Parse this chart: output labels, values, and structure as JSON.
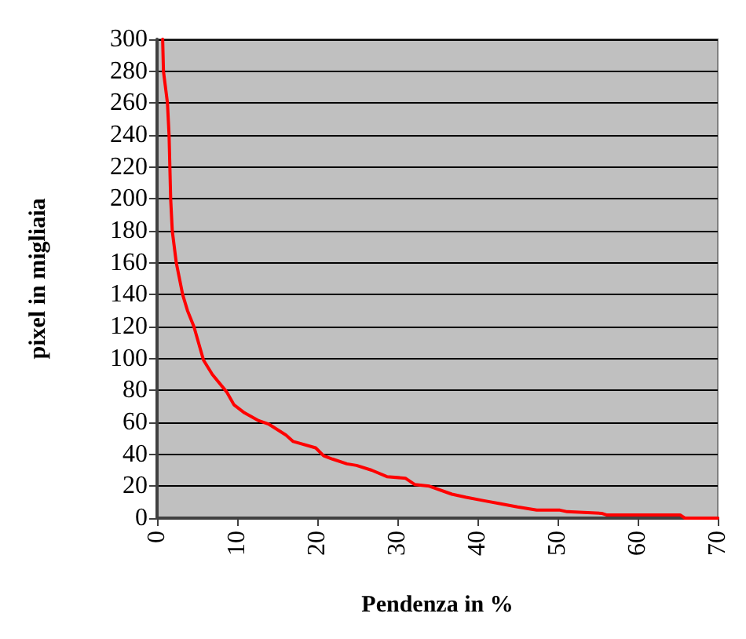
{
  "chart_data": {
    "type": "line",
    "xlabel": "Pendenza in %",
    "ylabel": "pixel in migliaia",
    "series": [
      {
        "color": "#ff0000",
        "x": [
          0.7,
          0.8,
          1.3,
          1.5,
          1.6,
          1.7,
          1.9,
          2.4,
          3.2,
          3.8,
          4.6,
          5.8,
          6.9,
          8.7,
          9.6,
          10.9,
          12.7,
          13.9,
          16.1,
          17,
          19.8,
          20.8,
          21.9,
          23.7,
          24.9,
          26.8,
          28.7,
          31,
          32.2,
          34,
          36.8,
          38.6,
          40.7,
          42.9,
          45,
          47.4,
          50.3,
          51.2,
          55.5,
          56.1,
          65.3,
          65.9,
          70
        ],
        "values": [
          300,
          280,
          260,
          240,
          220,
          200,
          180,
          160,
          140,
          130,
          120,
          99,
          90,
          79,
          71,
          66,
          61,
          59,
          52,
          48,
          44,
          39,
          37,
          34,
          33,
          30,
          26,
          25,
          21,
          20,
          15,
          13,
          11,
          9,
          7,
          5,
          5,
          4,
          3,
          2,
          2,
          0,
          0
        ]
      }
    ],
    "xlim": [
      0,
      70
    ],
    "xticks": [
      0,
      10,
      20,
      30,
      40,
      50,
      60,
      70
    ],
    "ylim": [
      0,
      300
    ],
    "yticks": [
      0,
      20,
      40,
      60,
      80,
      100,
      120,
      140,
      160,
      180,
      200,
      220,
      240,
      260,
      280,
      300
    ],
    "grid": "y",
    "marker": "none",
    "line_style": "solid"
  }
}
